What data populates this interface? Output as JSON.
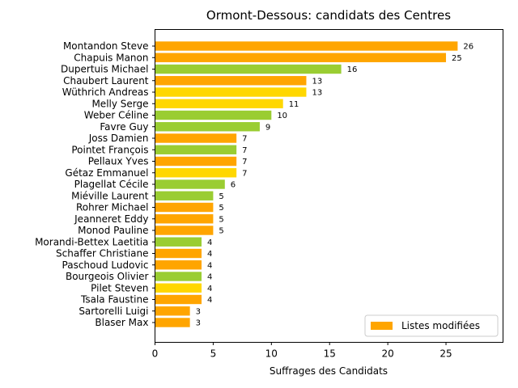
{
  "chart_data": {
    "type": "bar",
    "orientation": "horizontal",
    "title": "Ormont-Dessous: candidats des Centres",
    "xlabel": "Suffrages des Candidats",
    "ylabel": "",
    "xlim": [
      0,
      29.9
    ],
    "xticks": [
      0,
      5,
      10,
      15,
      20,
      25
    ],
    "grid": false,
    "legend": {
      "position": "bottom-right",
      "entries": [
        {
          "label": "Listes modifiées",
          "color": "#FFA500"
        }
      ]
    },
    "bars": [
      {
        "category": "Montandon Steve",
        "value": 26,
        "color": "#FFA500"
      },
      {
        "category": "Chapuis Manon",
        "value": 25,
        "color": "#FFA500"
      },
      {
        "category": "Dupertuis Michael",
        "value": 16,
        "color": "#9ACD32"
      },
      {
        "category": "Chaubert Laurent",
        "value": 13,
        "color": "#FFA500"
      },
      {
        "category": "Wüthrich Andreas",
        "value": 13,
        "color": "#FFD700"
      },
      {
        "category": "Melly Serge",
        "value": 11,
        "color": "#FFD700"
      },
      {
        "category": "Weber Céline",
        "value": 10,
        "color": "#9ACD32"
      },
      {
        "category": "Favre Guy",
        "value": 9,
        "color": "#9ACD32"
      },
      {
        "category": "Joss Damien",
        "value": 7,
        "color": "#FFA500"
      },
      {
        "category": "Pointet François",
        "value": 7,
        "color": "#9ACD32"
      },
      {
        "category": "Pellaux Yves",
        "value": 7,
        "color": "#FFA500"
      },
      {
        "category": "Gétaz Emmanuel",
        "value": 7,
        "color": "#FFD700"
      },
      {
        "category": "Plagellat Cécile",
        "value": 6,
        "color": "#9ACD32"
      },
      {
        "category": "Miéville Laurent",
        "value": 5,
        "color": "#9ACD32"
      },
      {
        "category": "Rohrer Michael",
        "value": 5,
        "color": "#FFA500"
      },
      {
        "category": "Jeanneret Eddy",
        "value": 5,
        "color": "#FFA500"
      },
      {
        "category": "Monod Pauline",
        "value": 5,
        "color": "#FFA500"
      },
      {
        "category": "Morandi-Bettex Laetitia",
        "value": 4,
        "color": "#9ACD32"
      },
      {
        "category": "Schaffer Christiane",
        "value": 4,
        "color": "#FFA500"
      },
      {
        "category": "Paschoud Ludovic",
        "value": 4,
        "color": "#FFA500"
      },
      {
        "category": "Bourgeois Olivier",
        "value": 4,
        "color": "#9ACD32"
      },
      {
        "category": "Pilet Steven",
        "value": 4,
        "color": "#FFD700"
      },
      {
        "category": "Tsala Faustine",
        "value": 4,
        "color": "#FFA500"
      },
      {
        "category": "Sartorelli Luigi",
        "value": 3,
        "color": "#FFA500"
      },
      {
        "category": "Blaser Max",
        "value": 3,
        "color": "#FFA500"
      }
    ]
  }
}
